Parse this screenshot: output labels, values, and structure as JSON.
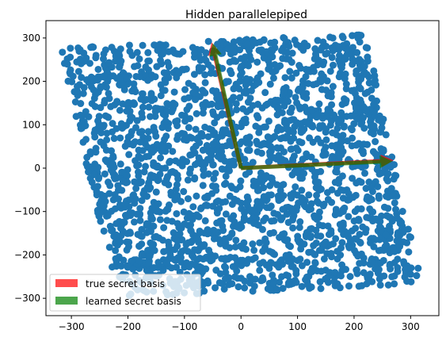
{
  "chart_data": {
    "type": "scatter",
    "title": "Hidden parallelepiped",
    "xlabel": "",
    "ylabel": "",
    "xlim": [
      -345,
      350
    ],
    "ylim": [
      -340,
      340
    ],
    "x_ticks": [
      -300,
      -200,
      -100,
      0,
      100,
      200,
      300
    ],
    "y_ticks": [
      -300,
      -200,
      -100,
      0,
      100,
      200,
      300
    ],
    "grid": false,
    "legend_position": "lower-left",
    "point_color": "#1f77b4",
    "parallelepiped_corners": [
      {
        "x": -320,
        "y": 277
      },
      {
        "x": 220,
        "y": 310
      },
      {
        "x": 325,
        "y": -265
      },
      {
        "x": -220,
        "y": -300
      }
    ],
    "series": [
      {
        "name": "true secret basis",
        "color": "#ff0000",
        "vectors": [
          {
            "x0": 0,
            "y0": 0,
            "x1": 270,
            "y1": 18
          },
          {
            "x0": 0,
            "y0": 0,
            "x1": -52,
            "y1": 290
          }
        ]
      },
      {
        "name": "learned secret basis",
        "color": "#008000",
        "vectors": [
          {
            "x0": 0,
            "y0": 0,
            "x1": 268,
            "y1": 16
          },
          {
            "x0": 0,
            "y0": 0,
            "x1": -50,
            "y1": 288
          }
        ]
      }
    ]
  }
}
